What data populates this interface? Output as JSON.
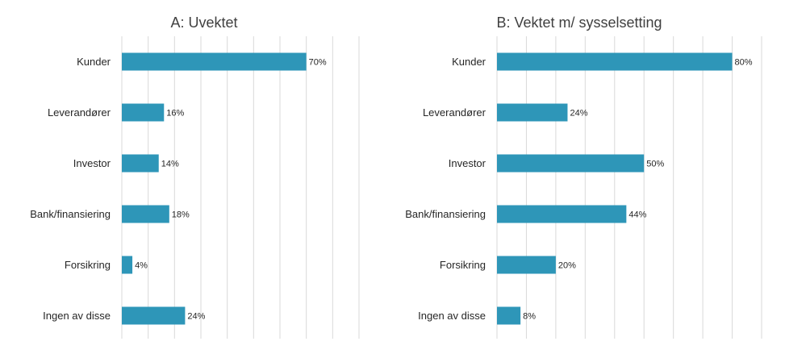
{
  "chart_data": [
    {
      "type": "bar",
      "orientation": "horizontal",
      "title": "A: Uvektet",
      "categories": [
        "Kunder",
        "Leverandører",
        "Investor",
        "Bank/finansiering",
        "Forsikring",
        "Ingen av disse"
      ],
      "values": [
        70,
        16,
        14,
        18,
        4,
        24
      ],
      "data_labels": [
        "70%",
        "16%",
        "14%",
        "18%",
        "4%",
        "24%"
      ],
      "xlim": [
        0,
        90
      ],
      "grid": true,
      "color": "#2E96B8"
    },
    {
      "type": "bar",
      "orientation": "horizontal",
      "title": "B: Vektet m/ sysselsetting",
      "categories": [
        "Kunder",
        "Leverandører",
        "Investor",
        "Bank/finansiering",
        "Forsikring",
        "Ingen av disse"
      ],
      "values": [
        80,
        24,
        50,
        44,
        20,
        8
      ],
      "data_labels": [
        "80%",
        "24%",
        "50%",
        "44%",
        "20%",
        "8%"
      ],
      "xlim": [
        0,
        90
      ],
      "grid": true,
      "color": "#2E96B8"
    }
  ]
}
